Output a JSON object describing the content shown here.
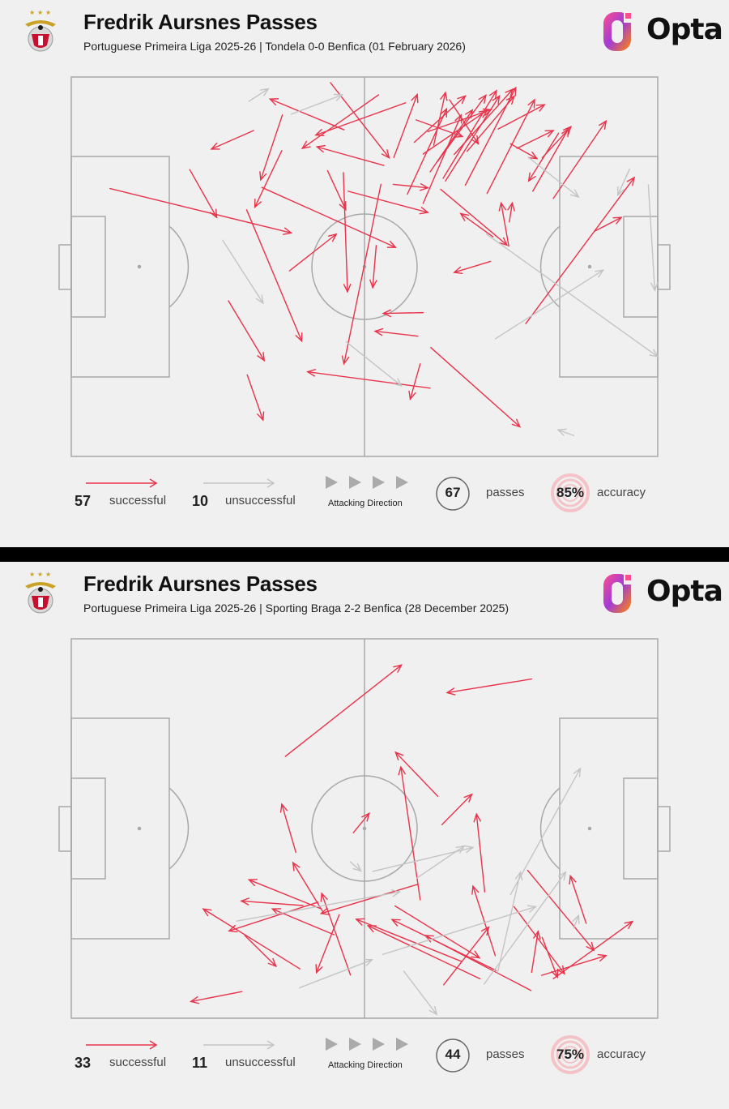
{
  "panels": [
    {
      "title": "Fredrik Aursnes Passes",
      "subtitle": "Portuguese Primeira Liga 2025-26 | Tondela 0-0 Benfica (01 February 2026)",
      "brand": "Opta",
      "legend": {
        "successful_count": "57",
        "successful_label": "successful",
        "unsuccessful_count": "10",
        "unsuccessful_label": "unsuccessful",
        "direction_label": "Attacking Direction",
        "passes_count": "67",
        "passes_label": "passes",
        "accuracy_value": "85%",
        "accuracy_label": "accuracy"
      }
    },
    {
      "title": "Fredrik Aursnes Passes",
      "subtitle": "Portuguese Primeira Liga 2025-26 | Sporting Braga 2-2 Benfica (28 December 2025)",
      "brand": "Opta",
      "legend": {
        "successful_count": "33",
        "successful_label": "successful",
        "unsuccessful_count": "11",
        "unsuccessful_label": "unsuccessful",
        "direction_label": "Attacking Direction",
        "passes_count": "44",
        "passes_label": "passes",
        "accuracy_value": "75%",
        "accuracy_label": "accuracy"
      }
    }
  ],
  "colors": {
    "successful": "#e8334a",
    "unsuccessful": "#c4c4c4",
    "pitch_lines": "#a8a8a8",
    "background": "#f0f0f0"
  },
  "chart_data": [
    {
      "type": "pass-map",
      "pitch": {
        "length": 100,
        "width": 100
      },
      "passes": [
        {
          "x1": 6.6,
          "y1": 29.4,
          "x2": 37.5,
          "y2": 41.1,
          "outcome": "successful"
        },
        {
          "x1": 20.2,
          "y1": 24.4,
          "x2": 24.8,
          "y2": 37.0,
          "outcome": "successful"
        },
        {
          "x1": 31.1,
          "y1": 14.1,
          "x2": 23.9,
          "y2": 19.0,
          "outcome": "successful"
        },
        {
          "x1": 36.0,
          "y1": 10.0,
          "x2": 32.3,
          "y2": 27.1,
          "outcome": "successful"
        },
        {
          "x1": 35.9,
          "y1": 19.4,
          "x2": 31.3,
          "y2": 34.3,
          "outcome": "successful"
        },
        {
          "x1": 46.5,
          "y1": 13.9,
          "x2": 33.9,
          "y2": 5.8,
          "outcome": "successful"
        },
        {
          "x1": 57.0,
          "y1": 6.8,
          "x2": 41.7,
          "y2": 15.3,
          "outcome": "successful"
        },
        {
          "x1": 44.2,
          "y1": 1.5,
          "x2": 54.2,
          "y2": 21.3,
          "outcome": "successful"
        },
        {
          "x1": 52.4,
          "y1": 4.7,
          "x2": 39.4,
          "y2": 18.8,
          "outcome": "successful"
        },
        {
          "x1": 53.3,
          "y1": 23.3,
          "x2": 41.9,
          "y2": 18.4,
          "outcome": "successful"
        },
        {
          "x1": 43.7,
          "y1": 24.7,
          "x2": 46.8,
          "y2": 35.0,
          "outcome": "successful"
        },
        {
          "x1": 32.5,
          "y1": 29.1,
          "x2": 55.3,
          "y2": 44.9,
          "outcome": "successful"
        },
        {
          "x1": 46.4,
          "y1": 25.2,
          "x2": 47.1,
          "y2": 56.6,
          "outcome": "successful"
        },
        {
          "x1": 47.2,
          "y1": 30.1,
          "x2": 60.8,
          "y2": 35.7,
          "outcome": "successful"
        },
        {
          "x1": 52.8,
          "y1": 28.3,
          "x2": 46.5,
          "y2": 75.6,
          "outcome": "successful"
        },
        {
          "x1": 52.0,
          "y1": 44.4,
          "x2": 51.4,
          "y2": 55.5,
          "outcome": "successful"
        },
        {
          "x1": 37.2,
          "y1": 51.1,
          "x2": 45.2,
          "y2": 41.4,
          "outcome": "successful"
        },
        {
          "x1": 29.9,
          "y1": 35.0,
          "x2": 39.3,
          "y2": 69.6,
          "outcome": "successful"
        },
        {
          "x1": 26.8,
          "y1": 59.0,
          "x2": 32.9,
          "y2": 74.7,
          "outcome": "successful"
        },
        {
          "x1": 30.0,
          "y1": 78.5,
          "x2": 32.7,
          "y2": 90.4,
          "outcome": "successful"
        },
        {
          "x1": 60.0,
          "y1": 62.1,
          "x2": 53.2,
          "y2": 62.3,
          "outcome": "successful"
        },
        {
          "x1": 59.1,
          "y1": 68.3,
          "x2": 51.8,
          "y2": 67.0,
          "outcome": "successful"
        },
        {
          "x1": 61.2,
          "y1": 82.0,
          "x2": 40.3,
          "y2": 77.7,
          "outcome": "successful"
        },
        {
          "x1": 59.5,
          "y1": 75.6,
          "x2": 57.8,
          "y2": 84.9,
          "outcome": "successful"
        },
        {
          "x1": 61.3,
          "y1": 71.3,
          "x2": 76.5,
          "y2": 92.2,
          "outcome": "successful"
        },
        {
          "x1": 71.5,
          "y1": 48.6,
          "x2": 65.3,
          "y2": 51.5,
          "outcome": "successful"
        },
        {
          "x1": 63.0,
          "y1": 29.6,
          "x2": 74.3,
          "y2": 44.3,
          "outcome": "successful"
        },
        {
          "x1": 60.8,
          "y1": 14.4,
          "x2": 71.6,
          "y2": 8.6,
          "outcome": "successful"
        },
        {
          "x1": 60.0,
          "y1": 20.3,
          "x2": 70.9,
          "y2": 8.8,
          "outcome": "successful"
        },
        {
          "x1": 57.3,
          "y1": 30.9,
          "x2": 64.0,
          "y2": 8.4,
          "outcome": "successful"
        },
        {
          "x1": 58.5,
          "y1": 17.2,
          "x2": 67.2,
          "y2": 5.0,
          "outcome": "successful"
        },
        {
          "x1": 61.2,
          "y1": 25.0,
          "x2": 68.4,
          "y2": 8.7,
          "outcome": "successful"
        },
        {
          "x1": 63.8,
          "y1": 27.4,
          "x2": 73.0,
          "y2": 5.0,
          "outcome": "successful"
        },
        {
          "x1": 65.3,
          "y1": 20.4,
          "x2": 75.3,
          "y2": 3.2,
          "outcome": "successful"
        },
        {
          "x1": 67.5,
          "y1": 19.6,
          "x2": 75.5,
          "y2": 5.1,
          "outcome": "successful"
        },
        {
          "x1": 70.9,
          "y1": 30.7,
          "x2": 79.0,
          "y2": 6.0,
          "outcome": "successful"
        },
        {
          "x1": 72.8,
          "y1": 13.7,
          "x2": 80.7,
          "y2": 7.3,
          "outcome": "successful"
        },
        {
          "x1": 74.9,
          "y1": 17.6,
          "x2": 79.4,
          "y2": 21.5,
          "outcome": "successful"
        },
        {
          "x1": 76.0,
          "y1": 18.8,
          "x2": 82.2,
          "y2": 14.1,
          "outcome": "successful"
        },
        {
          "x1": 80.3,
          "y1": 21.3,
          "x2": 85.2,
          "y2": 13.1,
          "outcome": "successful"
        },
        {
          "x1": 83.1,
          "y1": 14.8,
          "x2": 78.0,
          "y2": 27.4,
          "outcome": "successful"
        },
        {
          "x1": 78.7,
          "y1": 30.1,
          "x2": 84.8,
          "y2": 13.6,
          "outcome": "successful"
        },
        {
          "x1": 82.2,
          "y1": 32.0,
          "x2": 91.2,
          "y2": 11.6,
          "outcome": "successful"
        },
        {
          "x1": 77.5,
          "y1": 65.0,
          "x2": 96.0,
          "y2": 26.5,
          "outcome": "successful"
        },
        {
          "x1": 89.3,
          "y1": 40.6,
          "x2": 93.8,
          "y2": 37.0,
          "outcome": "successful"
        },
        {
          "x1": 74.6,
          "y1": 44.6,
          "x2": 73.3,
          "y2": 33.2,
          "outcome": "successful"
        },
        {
          "x1": 74.7,
          "y1": 38.2,
          "x2": 75.2,
          "y2": 33.2,
          "outcome": "successful"
        },
        {
          "x1": 71.9,
          "y1": 42.1,
          "x2": 66.4,
          "y2": 36.0,
          "outcome": "successful"
        },
        {
          "x1": 58.8,
          "y1": 11.3,
          "x2": 66.7,
          "y2": 15.7,
          "outcome": "successful"
        },
        {
          "x1": 61.8,
          "y1": 18.0,
          "x2": 63.8,
          "y2": 4.1,
          "outcome": "successful"
        },
        {
          "x1": 63.4,
          "y1": 26.7,
          "x2": 72.5,
          "y2": 3.6,
          "outcome": "successful"
        },
        {
          "x1": 62.5,
          "y1": 22.2,
          "x2": 70.7,
          "y2": 4.8,
          "outcome": "successful"
        },
        {
          "x1": 55.0,
          "y1": 21.2,
          "x2": 59.0,
          "y2": 4.6,
          "outcome": "successful"
        },
        {
          "x1": 54.9,
          "y1": 28.3,
          "x2": 60.8,
          "y2": 29.2,
          "outcome": "successful"
        },
        {
          "x1": 64.5,
          "y1": 6.0,
          "x2": 69.4,
          "y2": 17.6,
          "outcome": "successful"
        },
        {
          "x1": 60.0,
          "y1": 33.3,
          "x2": 66.5,
          "y2": 10.0,
          "outcome": "successful"
        },
        {
          "x1": 67.2,
          "y1": 28.5,
          "x2": 75.8,
          "y2": 2.8,
          "outcome": "successful"
        },
        {
          "x1": 25.8,
          "y1": 43.0,
          "x2": 32.7,
          "y2": 59.6,
          "outcome": "unsuccessful"
        },
        {
          "x1": 37.5,
          "y1": 9.8,
          "x2": 46.2,
          "y2": 4.7,
          "outcome": "unsuccessful"
        },
        {
          "x1": 30.3,
          "y1": 6.4,
          "x2": 33.6,
          "y2": 3.1,
          "outcome": "unsuccessful"
        },
        {
          "x1": 46.9,
          "y1": 69.8,
          "x2": 56.3,
          "y2": 81.4,
          "outcome": "unsuccessful"
        },
        {
          "x1": 70.8,
          "y1": 41.4,
          "x2": 100.0,
          "y2": 73.7,
          "outcome": "unsuccessful"
        },
        {
          "x1": 72.3,
          "y1": 69.0,
          "x2": 90.7,
          "y2": 50.9,
          "outcome": "unsuccessful"
        },
        {
          "x1": 77.9,
          "y1": 21.1,
          "x2": 86.5,
          "y2": 31.6,
          "outcome": "unsuccessful"
        },
        {
          "x1": 95.2,
          "y1": 24.3,
          "x2": 93.2,
          "y2": 31.1,
          "outcome": "unsuccessful"
        },
        {
          "x1": 98.4,
          "y1": 28.4,
          "x2": 99.5,
          "y2": 56.2,
          "outcome": "unsuccessful"
        },
        {
          "x1": 85.7,
          "y1": 94.5,
          "x2": 83.0,
          "y2": 93.0,
          "outcome": "unsuccessful"
        }
      ]
    },
    {
      "type": "pass-map",
      "pitch": {
        "length": 100,
        "width": 100
      },
      "passes": [
        {
          "x1": 36.5,
          "y1": 31.0,
          "x2": 56.3,
          "y2": 6.9,
          "outcome": "successful"
        },
        {
          "x1": 78.5,
          "y1": 10.6,
          "x2": 64.1,
          "y2": 14.2,
          "outcome": "successful"
        },
        {
          "x1": 62.5,
          "y1": 41.5,
          "x2": 55.3,
          "y2": 29.9,
          "outcome": "successful"
        },
        {
          "x1": 63.2,
          "y1": 49.0,
          "x2": 68.3,
          "y2": 41.0,
          "outcome": "successful"
        },
        {
          "x1": 59.5,
          "y1": 68.8,
          "x2": 56.2,
          "y2": 33.8,
          "outcome": "successful"
        },
        {
          "x1": 70.5,
          "y1": 66.7,
          "x2": 69.1,
          "y2": 46.2,
          "outcome": "successful"
        },
        {
          "x1": 38.3,
          "y1": 56.3,
          "x2": 35.9,
          "y2": 43.6,
          "outcome": "successful"
        },
        {
          "x1": 48.1,
          "y1": 51.1,
          "x2": 50.8,
          "y2": 46.0,
          "outcome": "successful"
        },
        {
          "x1": 42.5,
          "y1": 71.1,
          "x2": 30.3,
          "y2": 63.5,
          "outcome": "successful"
        },
        {
          "x1": 39.5,
          "y1": 70.3,
          "x2": 29.0,
          "y2": 69.1,
          "outcome": "successful"
        },
        {
          "x1": 44.8,
          "y1": 78.0,
          "x2": 34.3,
          "y2": 71.2,
          "outcome": "successful"
        },
        {
          "x1": 43.0,
          "y1": 72.2,
          "x2": 37.8,
          "y2": 59.0,
          "outcome": "successful"
        },
        {
          "x1": 42.1,
          "y1": 69.4,
          "x2": 26.9,
          "y2": 77.0,
          "outcome": "successful"
        },
        {
          "x1": 39.0,
          "y1": 87.0,
          "x2": 22.5,
          "y2": 71.2,
          "outcome": "successful"
        },
        {
          "x1": 45.7,
          "y1": 72.7,
          "x2": 41.8,
          "y2": 88.0,
          "outcome": "successful"
        },
        {
          "x1": 29.6,
          "y1": 78.2,
          "x2": 34.9,
          "y2": 86.3,
          "outcome": "successful"
        },
        {
          "x1": 29.1,
          "y1": 93.0,
          "x2": 20.4,
          "y2": 95.6,
          "outcome": "successful"
        },
        {
          "x1": 59.1,
          "y1": 64.7,
          "x2": 42.6,
          "y2": 72.4,
          "outcome": "successful"
        },
        {
          "x1": 47.6,
          "y1": 88.6,
          "x2": 42.7,
          "y2": 67.1,
          "outcome": "successful"
        },
        {
          "x1": 55.2,
          "y1": 70.4,
          "x2": 69.6,
          "y2": 84.1,
          "outcome": "successful"
        },
        {
          "x1": 66.5,
          "y1": 85.0,
          "x2": 48.6,
          "y2": 73.9,
          "outcome": "successful"
        },
        {
          "x1": 72.4,
          "y1": 87.4,
          "x2": 54.7,
          "y2": 74.0,
          "outcome": "successful"
        },
        {
          "x1": 69.7,
          "y1": 89.6,
          "x2": 50.6,
          "y2": 75.6,
          "outcome": "successful"
        },
        {
          "x1": 78.4,
          "y1": 92.7,
          "x2": 60.4,
          "y2": 78.2,
          "outcome": "successful"
        },
        {
          "x1": 63.5,
          "y1": 91.2,
          "x2": 71.2,
          "y2": 76.0,
          "outcome": "successful"
        },
        {
          "x1": 72.3,
          "y1": 83.5,
          "x2": 68.5,
          "y2": 65.2,
          "outcome": "successful"
        },
        {
          "x1": 78.5,
          "y1": 87.9,
          "x2": 79.6,
          "y2": 77.1,
          "outcome": "successful"
        },
        {
          "x1": 75.5,
          "y1": 70.6,
          "x2": 84.1,
          "y2": 88.3,
          "outcome": "successful"
        },
        {
          "x1": 77.8,
          "y1": 61.0,
          "x2": 89.1,
          "y2": 82.1,
          "outcome": "successful"
        },
        {
          "x1": 87.8,
          "y1": 75.0,
          "x2": 85.1,
          "y2": 62.5,
          "outcome": "successful"
        },
        {
          "x1": 80.3,
          "y1": 78.7,
          "x2": 82.9,
          "y2": 89.2,
          "outcome": "successful"
        },
        {
          "x1": 82.2,
          "y1": 89.6,
          "x2": 95.7,
          "y2": 74.5,
          "outcome": "successful"
        },
        {
          "x1": 80.2,
          "y1": 88.7,
          "x2": 91.2,
          "y2": 83.5,
          "outcome": "successful"
        },
        {
          "x1": 28.2,
          "y1": 74.4,
          "x2": 56.0,
          "y2": 66.7,
          "outcome": "unsuccessful"
        },
        {
          "x1": 58.9,
          "y1": 63.1,
          "x2": 67.0,
          "y2": 54.6,
          "outcome": "unsuccessful"
        },
        {
          "x1": 51.4,
          "y1": 61.3,
          "x2": 68.5,
          "y2": 55.0,
          "outcome": "unsuccessful"
        },
        {
          "x1": 47.6,
          "y1": 58.8,
          "x2": 49.4,
          "y2": 61.2,
          "outcome": "unsuccessful"
        },
        {
          "x1": 38.9,
          "y1": 92.0,
          "x2": 51.3,
          "y2": 84.6,
          "outcome": "unsuccessful"
        },
        {
          "x1": 56.7,
          "y1": 87.6,
          "x2": 62.3,
          "y2": 99.0,
          "outcome": "unsuccessful"
        },
        {
          "x1": 53.1,
          "y1": 83.2,
          "x2": 79.2,
          "y2": 70.6,
          "outcome": "unsuccessful"
        },
        {
          "x1": 70.4,
          "y1": 91.0,
          "x2": 84.3,
          "y2": 61.5,
          "outcome": "unsuccessful"
        },
        {
          "x1": 72.7,
          "y1": 88.0,
          "x2": 76.6,
          "y2": 61.5,
          "outcome": "unsuccessful"
        },
        {
          "x1": 74.9,
          "y1": 67.4,
          "x2": 86.8,
          "y2": 34.2,
          "outcome": "unsuccessful"
        },
        {
          "x1": 85.7,
          "y1": 76.2,
          "x2": 86.5,
          "y2": 72.9,
          "outcome": "unsuccessful"
        }
      ]
    }
  ]
}
